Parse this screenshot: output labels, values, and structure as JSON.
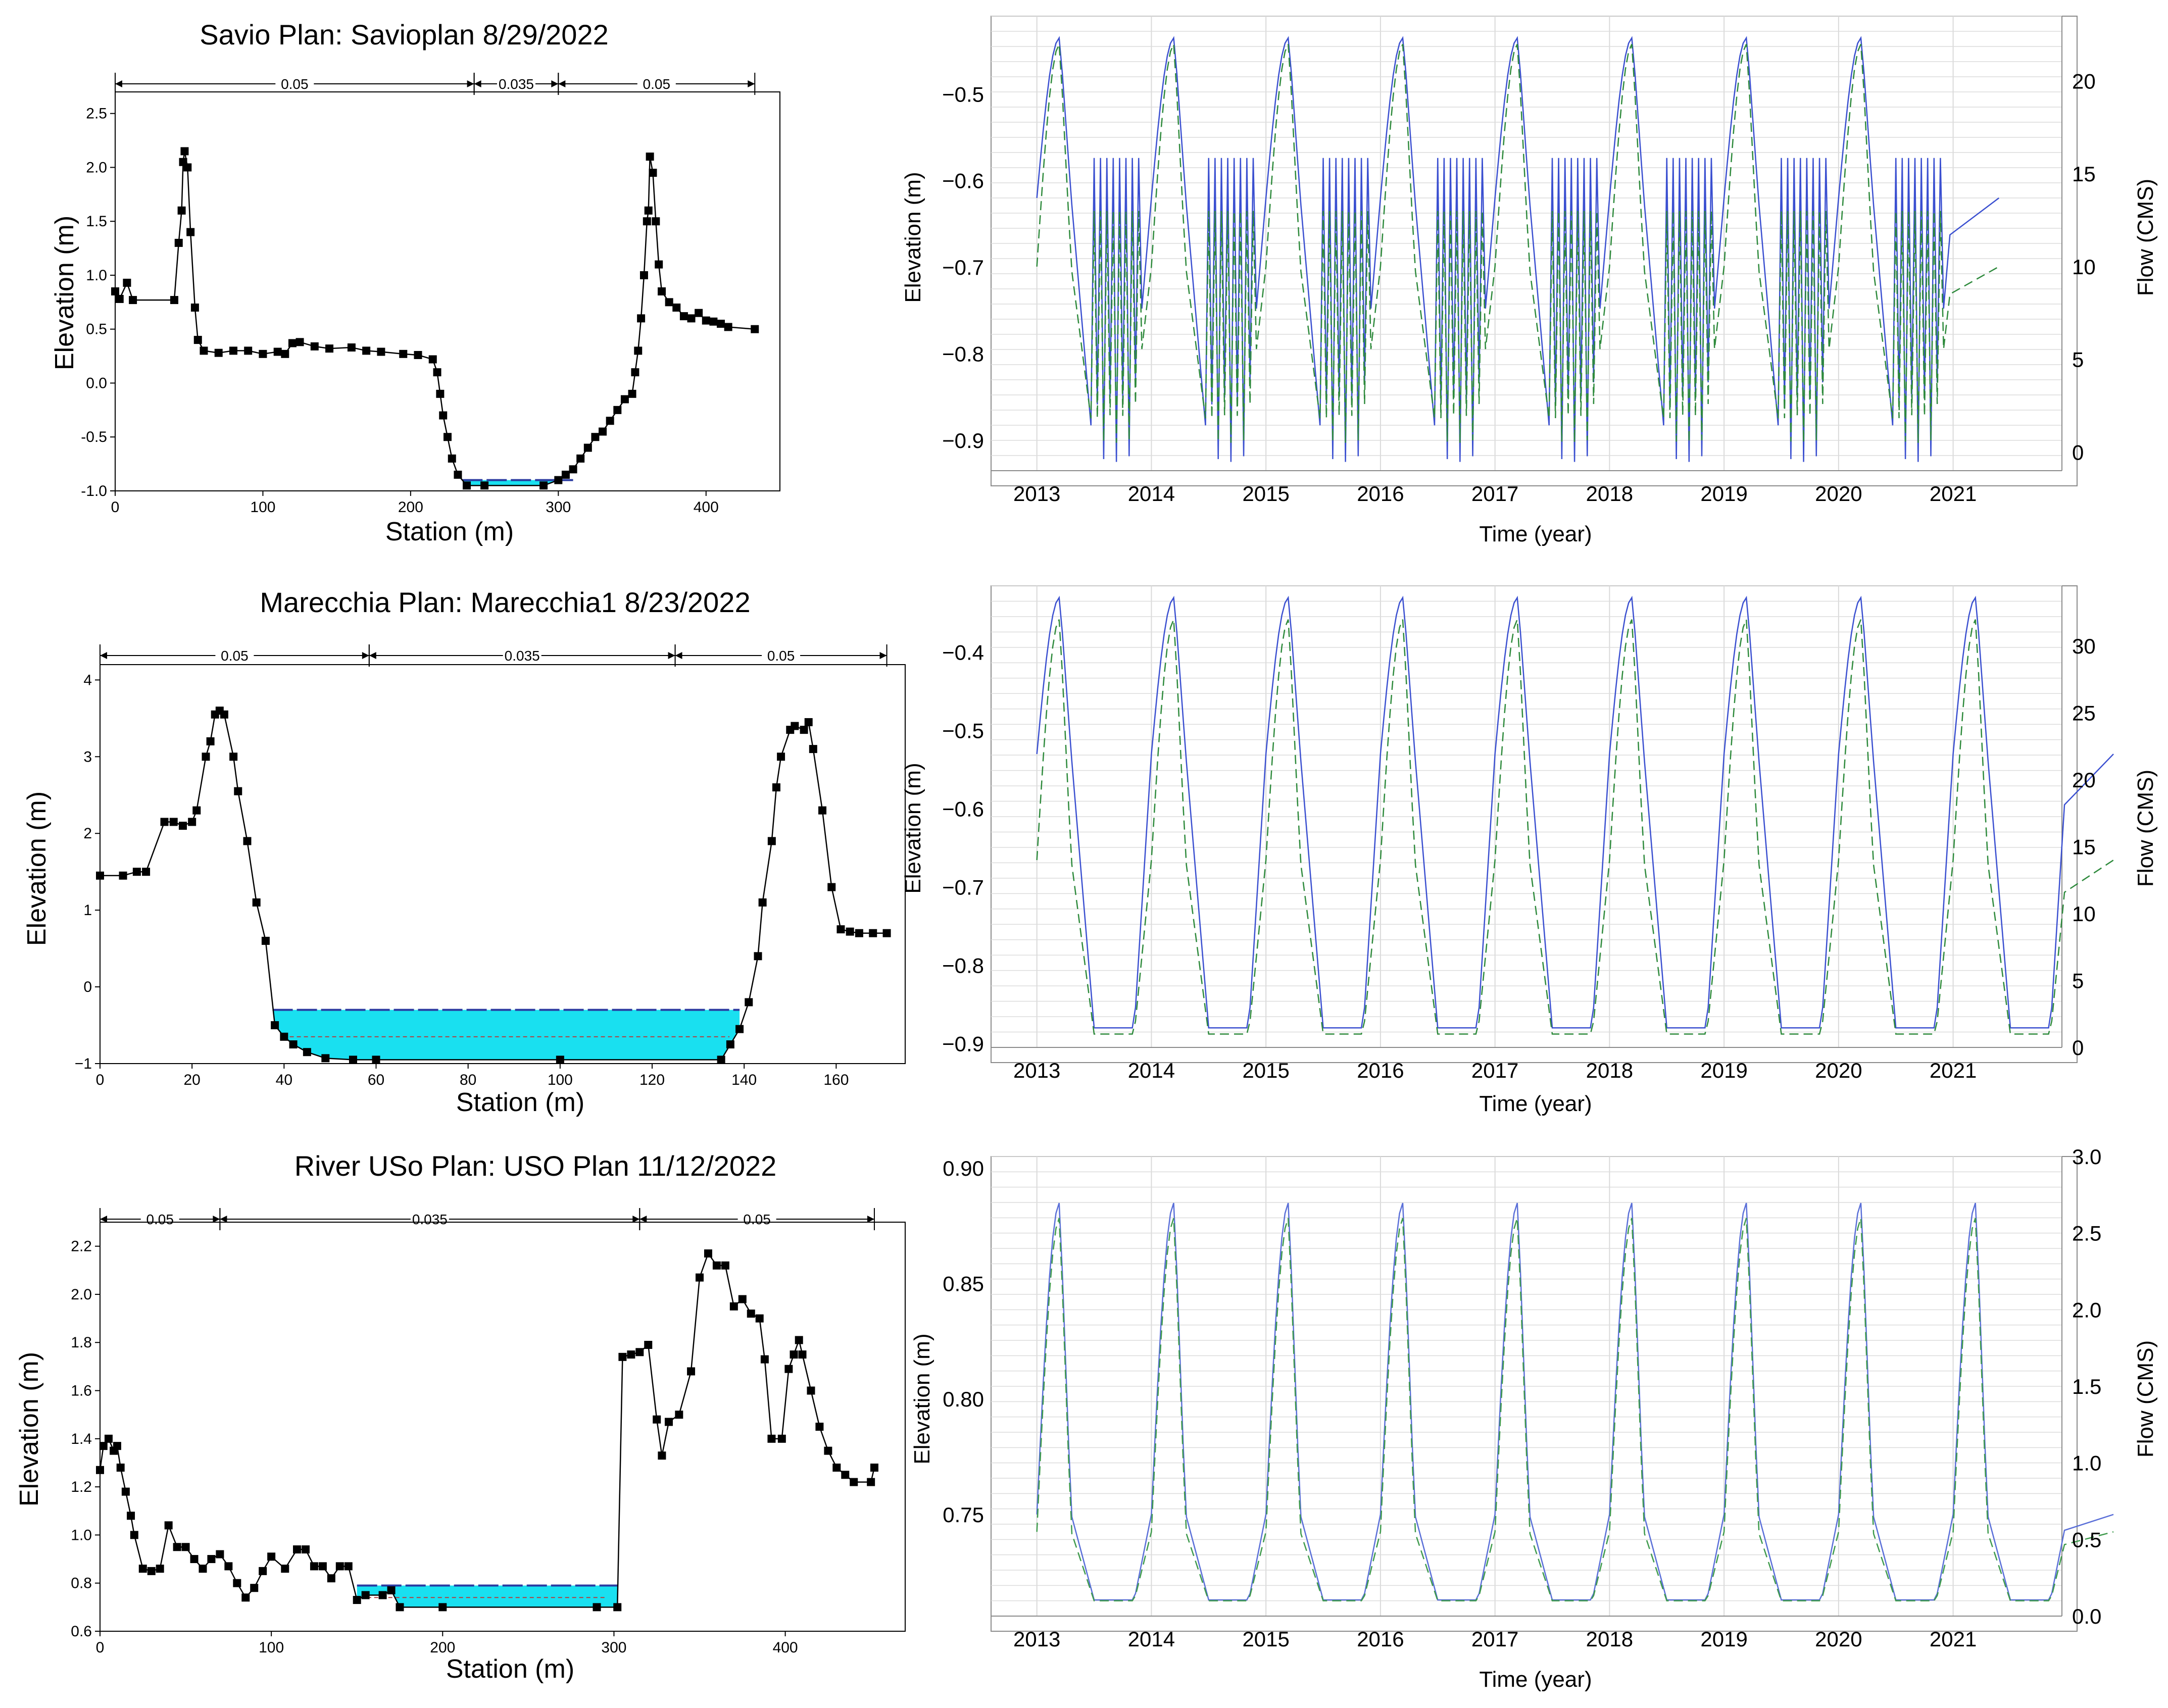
{
  "chart_data": [
    {
      "type": "line",
      "id": "xs-savio",
      "title": "Savio Plan: Savioplan 8/29/2022",
      "xlabel": "Station (m)",
      "ylabel": "Elevation (m)",
      "xlim": [
        0,
        450
      ],
      "ylim": [
        -1.0,
        2.7
      ],
      "xticks": [
        0,
        100,
        200,
        300,
        400
      ],
      "xtick_labels": [
        "0",
        "100",
        "200",
        "300",
        "400"
      ],
      "yticks": [
        -1.0,
        -0.5,
        0.0,
        0.5,
        1.0,
        1.5,
        2.0,
        2.5
      ],
      "ytick_labels": [
        "-1.0",
        "-0.5",
        "0.0",
        "0.5",
        "1.0",
        "1.5",
        "2.0",
        "2.5"
      ],
      "manning": [
        {
          "from": 0,
          "to": 243,
          "label": "0.05"
        },
        {
          "from": 243,
          "to": 300,
          "label": "0.035"
        },
        {
          "from": 300,
          "to": 433,
          "label": "0.05"
        }
      ],
      "water": {
        "from": 235,
        "to": 310,
        "surface": -0.9,
        "bottom": -0.95
      },
      "profile": [
        [
          0,
          0.85
        ],
        [
          3,
          0.78
        ],
        [
          8,
          0.93
        ],
        [
          12,
          0.77
        ],
        [
          40,
          0.77
        ],
        [
          43,
          1.3
        ],
        [
          45,
          1.6
        ],
        [
          46,
          2.05
        ],
        [
          47,
          2.15
        ],
        [
          49,
          2.0
        ],
        [
          51,
          1.4
        ],
        [
          54,
          0.7
        ],
        [
          56,
          0.4
        ],
        [
          60,
          0.3
        ],
        [
          70,
          0.28
        ],
        [
          80,
          0.3
        ],
        [
          90,
          0.3
        ],
        [
          100,
          0.27
        ],
        [
          110,
          0.29
        ],
        [
          115,
          0.27
        ],
        [
          120,
          0.37
        ],
        [
          125,
          0.38
        ],
        [
          135,
          0.34
        ],
        [
          145,
          0.32
        ],
        [
          160,
          0.33
        ],
        [
          170,
          0.3
        ],
        [
          180,
          0.29
        ],
        [
          195,
          0.27
        ],
        [
          205,
          0.26
        ],
        [
          215,
          0.22
        ],
        [
          218,
          0.1
        ],
        [
          220,
          -0.1
        ],
        [
          222,
          -0.3
        ],
        [
          225,
          -0.5
        ],
        [
          228,
          -0.7
        ],
        [
          232,
          -0.85
        ],
        [
          238,
          -0.95
        ],
        [
          250,
          -0.95
        ],
        [
          290,
          -0.95
        ],
        [
          300,
          -0.9
        ],
        [
          305,
          -0.85
        ],
        [
          310,
          -0.8
        ],
        [
          315,
          -0.7
        ],
        [
          320,
          -0.6
        ],
        [
          325,
          -0.5
        ],
        [
          330,
          -0.45
        ],
        [
          335,
          -0.35
        ],
        [
          340,
          -0.25
        ],
        [
          345,
          -0.15
        ],
        [
          350,
          -0.1
        ],
        [
          352,
          0.1
        ],
        [
          354,
          0.3
        ],
        [
          356,
          0.6
        ],
        [
          358,
          1.0
        ],
        [
          360,
          1.5
        ],
        [
          361,
          1.6
        ],
        [
          362,
          2.1
        ],
        [
          364,
          1.95
        ],
        [
          366,
          1.5
        ],
        [
          368,
          1.1
        ],
        [
          370,
          0.85
        ],
        [
          375,
          0.75
        ],
        [
          380,
          0.7
        ],
        [
          385,
          0.62
        ],
        [
          390,
          0.6
        ],
        [
          395,
          0.65
        ],
        [
          400,
          0.58
        ],
        [
          405,
          0.57
        ],
        [
          410,
          0.55
        ],
        [
          415,
          0.52
        ],
        [
          433,
          0.5
        ]
      ]
    },
    {
      "type": "line",
      "id": "ts-savio",
      "xlabel": "Time (year)",
      "ylabel": "Elevation (m)",
      "y2label": "Flow (CMS)",
      "xlim": [
        2012.6,
        2021.95
      ],
      "ylim": [
        -0.935,
        -0.41
      ],
      "y2lim": [
        -1,
        23.5
      ],
      "xticks": [
        2013,
        2014,
        2015,
        2016,
        2017,
        2018,
        2019,
        2020,
        2021
      ],
      "xtick_labels": [
        "2013",
        "2014",
        "2015",
        "2016",
        "2017",
        "2018",
        "2019",
        "2020",
        "2021"
      ],
      "yticks": [
        -0.9,
        -0.8,
        -0.7,
        -0.6,
        -0.5
      ],
      "ytick_labels": [
        "−0.9",
        "−0.8",
        "−0.7",
        "−0.6",
        "−0.5"
      ],
      "y2ticks": [
        0,
        5,
        10,
        15,
        20
      ],
      "y2tick_labels": [
        "0",
        "5",
        "10",
        "15",
        "20"
      ],
      "series": [
        {
          "name": "Elevation",
          "axis": "left",
          "color": "#3a4fd0",
          "dash": "solid",
          "start": 2013,
          "years": 8,
          "base": -0.85,
          "peak": -0.435,
          "shoulder": -0.62,
          "low": -0.925,
          "spiky": true
        },
        {
          "name": "Flow",
          "axis": "right",
          "color": "#2e8a3c",
          "dash": "dashed",
          "start": 2013,
          "years": 8,
          "base": 2.0,
          "peak": 22.0,
          "shoulder": 10.0,
          "low": 0.5,
          "spiky": true
        }
      ]
    },
    {
      "type": "line",
      "id": "xs-marecchia",
      "title": "Marecchia Plan: Marecchia1 8/23/2022",
      "xlabel": "Station (m)",
      "ylabel": "Elevation (m)",
      "xlim": [
        0,
        175
      ],
      "ylim": [
        -1.0,
        4.2
      ],
      "xticks": [
        0,
        20,
        40,
        60,
        80,
        100,
        120,
        140,
        160
      ],
      "xtick_labels": [
        "0",
        "20",
        "40",
        "60",
        "80",
        "100",
        "120",
        "140",
        "160"
      ],
      "yticks": [
        -1,
        0,
        1,
        2,
        3,
        4
      ],
      "ytick_labels": [
        "−1",
        "0",
        "1",
        "2",
        "3",
        "4"
      ],
      "manning": [
        {
          "from": 0,
          "to": 58.5,
          "label": "0.05"
        },
        {
          "from": 58.5,
          "to": 125,
          "label": "0.035"
        },
        {
          "from": 125,
          "to": 171,
          "label": "0.05"
        }
      ],
      "water": {
        "from": 37.5,
        "to": 139,
        "surface": -0.3,
        "bottom": -0.95,
        "dashed_level": -0.65
      },
      "profile": [
        [
          0,
          1.45
        ],
        [
          5,
          1.45
        ],
        [
          8,
          1.5
        ],
        [
          10,
          1.5
        ],
        [
          14,
          2.15
        ],
        [
          16,
          2.15
        ],
        [
          18,
          2.1
        ],
        [
          20,
          2.15
        ],
        [
          21,
          2.3
        ],
        [
          23,
          3.0
        ],
        [
          24,
          3.2
        ],
        [
          25,
          3.55
        ],
        [
          26,
          3.6
        ],
        [
          27,
          3.55
        ],
        [
          29,
          3.0
        ],
        [
          30,
          2.55
        ],
        [
          32,
          1.9
        ],
        [
          34,
          1.1
        ],
        [
          36,
          0.6
        ],
        [
          38,
          -0.5
        ],
        [
          40,
          -0.65
        ],
        [
          42,
          -0.75
        ],
        [
          45,
          -0.85
        ],
        [
          49,
          -0.93
        ],
        [
          55,
          -0.95
        ],
        [
          60,
          -0.95
        ],
        [
          100,
          -0.95
        ],
        [
          135,
          -0.95
        ],
        [
          137,
          -0.75
        ],
        [
          139,
          -0.55
        ],
        [
          141,
          -0.2
        ],
        [
          143,
          0.4
        ],
        [
          144,
          1.1
        ],
        [
          146,
          1.9
        ],
        [
          147,
          2.6
        ],
        [
          148,
          3.0
        ],
        [
          150,
          3.35
        ],
        [
          151,
          3.4
        ],
        [
          153,
          3.35
        ],
        [
          154,
          3.45
        ],
        [
          155,
          3.1
        ],
        [
          157,
          2.3
        ],
        [
          159,
          1.3
        ],
        [
          161,
          0.75
        ],
        [
          163,
          0.72
        ],
        [
          165,
          0.7
        ],
        [
          168,
          0.7
        ],
        [
          171,
          0.7
        ]
      ]
    },
    {
      "type": "line",
      "id": "ts-marecchia",
      "xlabel": "Time (year)",
      "ylabel": "Elevation (m)",
      "y2label": "Flow (CMS)",
      "xlim": [
        2012.6,
        2021.95
      ],
      "ylim": [
        -0.905,
        -0.315
      ],
      "y2lim": [
        0,
        34.5
      ],
      "xticks": [
        2013,
        2014,
        2015,
        2016,
        2017,
        2018,
        2019,
        2020,
        2021
      ],
      "xtick_labels": [
        "2013",
        "2014",
        "2015",
        "2016",
        "2017",
        "2018",
        "2019",
        "2020",
        "2021"
      ],
      "yticks": [
        -0.9,
        -0.8,
        -0.7,
        -0.6,
        -0.5,
        -0.4
      ],
      "ytick_labels": [
        "−0.9",
        "−0.8",
        "−0.7",
        "−0.6",
        "−0.5",
        "−0.4"
      ],
      "y2ticks": [
        0,
        5,
        10,
        15,
        20,
        25,
        30
      ],
      "y2tick_labels": [
        "0",
        "5",
        "10",
        "15",
        "20",
        "25",
        "30"
      ],
      "series": [
        {
          "name": "Elevation",
          "axis": "left",
          "color": "#3a4fd0",
          "dash": "solid",
          "start": 2013,
          "years": 9,
          "base": -0.88,
          "peak": -0.33,
          "shoulder": -0.53,
          "low": -0.88,
          "spiky": false
        },
        {
          "name": "Flow",
          "axis": "right",
          "color": "#2e8a3c",
          "dash": "dashed",
          "start": 2013,
          "years": 9,
          "base": 1.0,
          "peak": 32.0,
          "shoulder": 14.0,
          "low": 1.0,
          "spiky": false
        }
      ]
    },
    {
      "type": "line",
      "id": "xs-uso",
      "title": "River USo Plan: USO Plan 11/12/2022",
      "xlabel": "Station (m)",
      "ylabel": "Elevation (m)",
      "xlim": [
        0,
        470
      ],
      "ylim": [
        0.6,
        2.3
      ],
      "xticks": [
        0,
        100,
        200,
        300,
        400
      ],
      "xtick_labels": [
        "0",
        "100",
        "200",
        "300",
        "400"
      ],
      "yticks": [
        0.6,
        0.8,
        1.0,
        1.2,
        1.4,
        1.6,
        1.8,
        2.0,
        2.2
      ],
      "ytick_labels": [
        "0.6",
        "0.8",
        "1.0",
        "1.2",
        "1.4",
        "1.6",
        "1.8",
        "2.0",
        "2.2"
      ],
      "manning": [
        {
          "from": 0,
          "to": 70,
          "label": "0.05"
        },
        {
          "from": 70,
          "to": 315,
          "label": "0.035"
        },
        {
          "from": 315,
          "to": 452,
          "label": "0.05"
        }
      ],
      "water": {
        "from": 150,
        "to": 302,
        "surface": 0.79,
        "bottom": 0.7,
        "dashed_level": 0.74
      },
      "profile": [
        [
          0,
          1.27
        ],
        [
          2,
          1.37
        ],
        [
          5,
          1.4
        ],
        [
          8,
          1.35
        ],
        [
          10,
          1.37
        ],
        [
          12,
          1.28
        ],
        [
          15,
          1.18
        ],
        [
          18,
          1.08
        ],
        [
          20,
          1.0
        ],
        [
          25,
          0.86
        ],
        [
          30,
          0.85
        ],
        [
          35,
          0.86
        ],
        [
          40,
          1.04
        ],
        [
          45,
          0.95
        ],
        [
          50,
          0.95
        ],
        [
          55,
          0.9
        ],
        [
          60,
          0.86
        ],
        [
          65,
          0.9
        ],
        [
          70,
          0.92
        ],
        [
          75,
          0.87
        ],
        [
          80,
          0.8
        ],
        [
          85,
          0.74
        ],
        [
          90,
          0.78
        ],
        [
          95,
          0.85
        ],
        [
          100,
          0.91
        ],
        [
          108,
          0.86
        ],
        [
          115,
          0.94
        ],
        [
          120,
          0.94
        ],
        [
          125,
          0.87
        ],
        [
          130,
          0.87
        ],
        [
          135,
          0.82
        ],
        [
          140,
          0.87
        ],
        [
          145,
          0.87
        ],
        [
          150,
          0.73
        ],
        [
          155,
          0.75
        ],
        [
          165,
          0.75
        ],
        [
          170,
          0.77
        ],
        [
          175,
          0.7
        ],
        [
          200,
          0.7
        ],
        [
          290,
          0.7
        ],
        [
          302,
          0.7
        ],
        [
          305,
          1.74
        ],
        [
          310,
          1.75
        ],
        [
          315,
          1.76
        ],
        [
          320,
          1.79
        ],
        [
          325,
          1.48
        ],
        [
          328,
          1.33
        ],
        [
          332,
          1.47
        ],
        [
          338,
          1.5
        ],
        [
          345,
          1.68
        ],
        [
          350,
          2.07
        ],
        [
          355,
          2.17
        ],
        [
          360,
          2.12
        ],
        [
          365,
          2.12
        ],
        [
          370,
          1.95
        ],
        [
          375,
          1.98
        ],
        [
          380,
          1.92
        ],
        [
          385,
          1.9
        ],
        [
          388,
          1.73
        ],
        [
          392,
          1.4
        ],
        [
          398,
          1.4
        ],
        [
          402,
          1.69
        ],
        [
          405,
          1.75
        ],
        [
          408,
          1.81
        ],
        [
          410,
          1.75
        ],
        [
          415,
          1.6
        ],
        [
          420,
          1.45
        ],
        [
          425,
          1.35
        ],
        [
          430,
          1.28
        ],
        [
          435,
          1.25
        ],
        [
          440,
          1.22
        ],
        [
          450,
          1.22
        ],
        [
          452,
          1.28
        ]
      ]
    },
    {
      "type": "line",
      "id": "ts-uso",
      "xlabel": "Time (year)",
      "ylabel": "Elevation (m)",
      "y2label": "Flow (CMS)",
      "xlim": [
        2012.6,
        2021.95
      ],
      "ylim": [
        0.706,
        0.905
      ],
      "y2lim": [
        0,
        3.0
      ],
      "xticks": [
        2013,
        2014,
        2015,
        2016,
        2017,
        2018,
        2019,
        2020,
        2021
      ],
      "xtick_labels": [
        "2013",
        "2014",
        "2015",
        "2016",
        "2017",
        "2018",
        "2019",
        "2020",
        "2021"
      ],
      "yticks": [
        0.75,
        0.8,
        0.85,
        0.9
      ],
      "ytick_labels": [
        "0.75",
        "0.80",
        "0.85",
        "0.90"
      ],
      "y2ticks": [
        0,
        0.5,
        1.0,
        1.5,
        2.0,
        2.5,
        3.0
      ],
      "y2tick_labels": [
        "0.0",
        "0.5",
        "1.0",
        "1.5",
        "2.0",
        "2.5",
        "3.0"
      ],
      "series": [
        {
          "name": "Elevation",
          "axis": "left",
          "color": "#5a6fd8",
          "dash": "solid",
          "start": 2013,
          "years": 9,
          "base": 0.713,
          "peak": 0.885,
          "shoulder": 0.75,
          "low": 0.713,
          "spiky": false
        },
        {
          "name": "Flow",
          "axis": "right",
          "color": "#3e9a4c",
          "dash": "dashed",
          "start": 2013,
          "years": 9,
          "base": 0.1,
          "peak": 2.6,
          "shoulder": 0.55,
          "low": 0.1,
          "spiky": false
        }
      ]
    }
  ]
}
